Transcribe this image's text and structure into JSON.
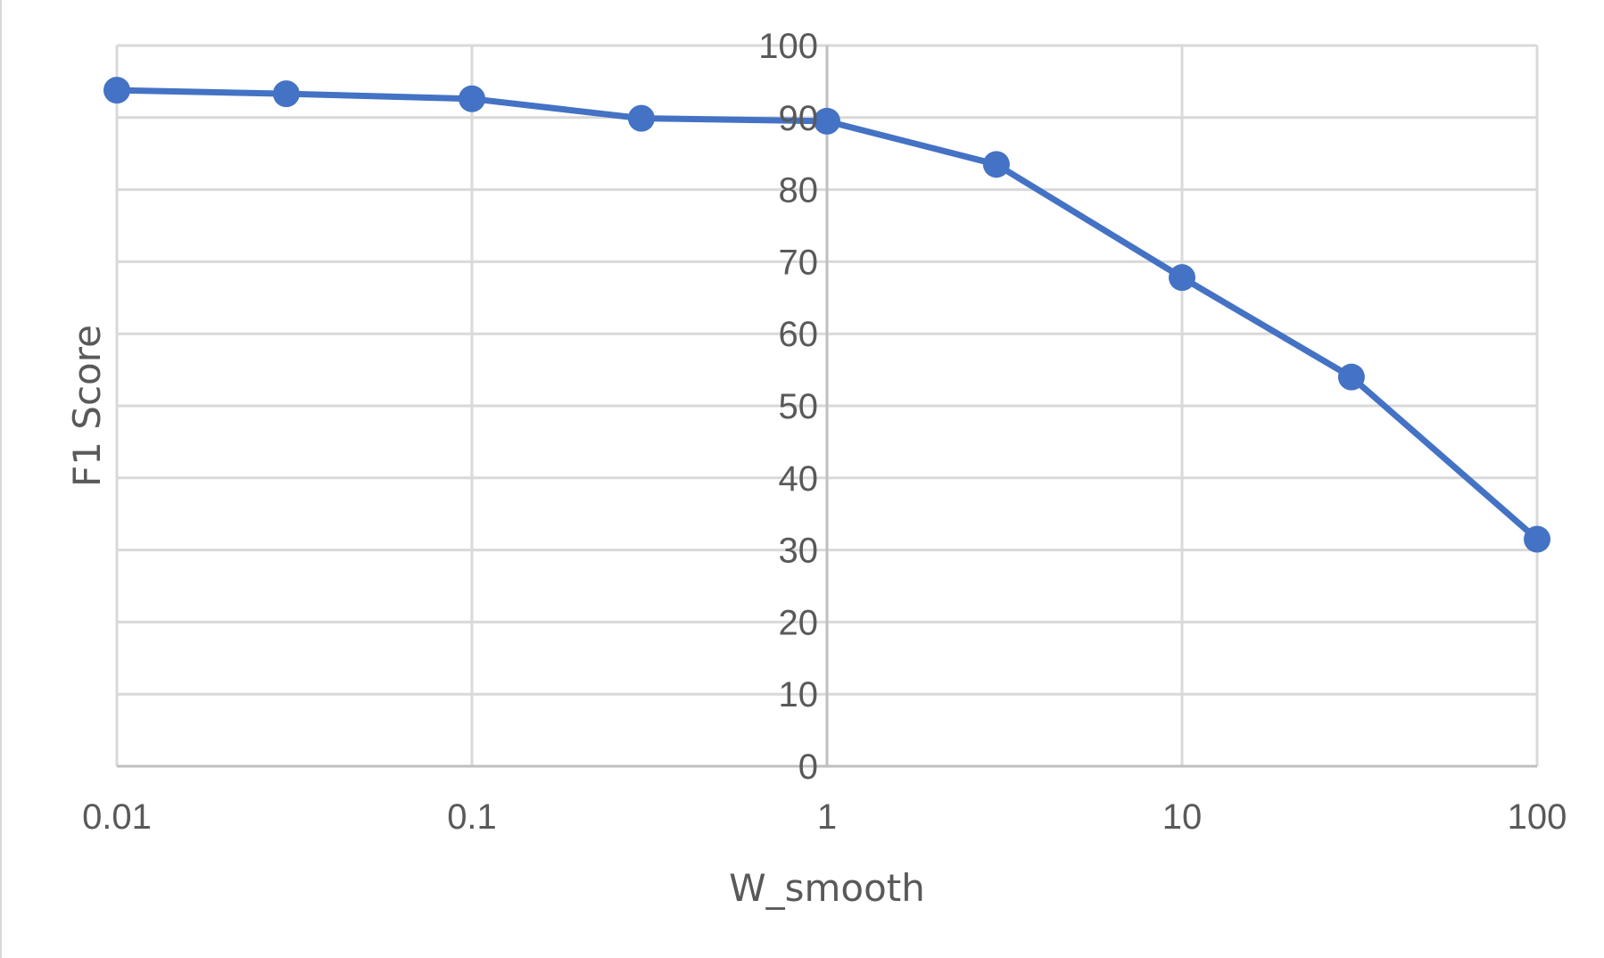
{
  "chart_data": {
    "type": "line",
    "x_scale": "log",
    "xlabel": "W_smooth",
    "ylabel": "F1 Score",
    "xlim": [
      0.01,
      100
    ],
    "ylim": [
      0,
      100
    ],
    "x_ticks": [
      0.01,
      0.1,
      1,
      10,
      100
    ],
    "x_tick_labels": [
      "0.01",
      "0.1",
      "1",
      "10",
      "100"
    ],
    "y_ticks": [
      0,
      10,
      20,
      30,
      40,
      50,
      60,
      70,
      80,
      90,
      100
    ],
    "y_tick_labels": [
      "0",
      "10",
      "20",
      "30",
      "40",
      "50",
      "60",
      "70",
      "80",
      "90",
      "100"
    ],
    "y_axis_crosses_at_x": 1,
    "grid": true,
    "legend": "none",
    "series": [
      {
        "color": "#4472c4",
        "x": [
          0.01,
          0.03,
          0.1,
          0.3,
          1,
          3,
          10,
          30,
          100
        ],
        "y": [
          93.8,
          93.3,
          92.6,
          89.9,
          89.5,
          83.5,
          67.8,
          54.0,
          31.5
        ]
      }
    ]
  },
  "colors": {
    "series": "#4472c4",
    "grid": "#d9d9d9",
    "text": "#595959"
  }
}
